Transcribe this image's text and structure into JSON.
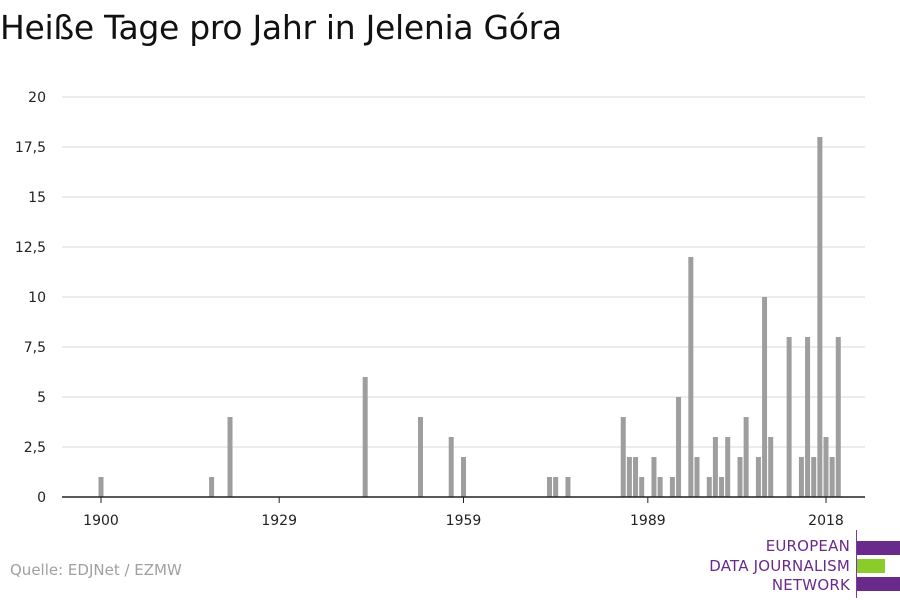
{
  "title": "Heiße Tage pro Jahr in Jelenia Góra",
  "source": "Quelle: EDJNet / EZMW",
  "logo": {
    "lines": [
      "EUROPEAN",
      "DATA JOURNALISM",
      "NETWORK"
    ],
    "colors": {
      "purple": "#6a2a8c",
      "green": "#8ccc2a"
    }
  },
  "chart_data": {
    "type": "bar",
    "title": "Heiße Tage pro Jahr in Jelenia Góra",
    "xlabel": "",
    "ylabel": "",
    "x_ticks": [
      1900,
      1929,
      1959,
      1989,
      2018
    ],
    "y_ticks": [
      "0",
      "2,5",
      "5",
      "7,5",
      "10",
      "12,5",
      "15",
      "17,5",
      "20"
    ],
    "ylim": [
      0,
      20
    ],
    "xlim": [
      1900,
      2018
    ],
    "grid": true,
    "bar_color": "#9e9e9e",
    "points": [
      {
        "x": 1900,
        "y": 1
      },
      {
        "x": 1918,
        "y": 1
      },
      {
        "x": 1921,
        "y": 4
      },
      {
        "x": 1943,
        "y": 6
      },
      {
        "x": 1952,
        "y": 4
      },
      {
        "x": 1957,
        "y": 3
      },
      {
        "x": 1959,
        "y": 2
      },
      {
        "x": 1973,
        "y": 1
      },
      {
        "x": 1974,
        "y": 1
      },
      {
        "x": 1976,
        "y": 1
      },
      {
        "x": 1985,
        "y": 4
      },
      {
        "x": 1986,
        "y": 2
      },
      {
        "x": 1987,
        "y": 2
      },
      {
        "x": 1988,
        "y": 1
      },
      {
        "x": 1990,
        "y": 2
      },
      {
        "x": 1991,
        "y": 1
      },
      {
        "x": 1993,
        "y": 1
      },
      {
        "x": 1994,
        "y": 5
      },
      {
        "x": 1996,
        "y": 12
      },
      {
        "x": 1997,
        "y": 2
      },
      {
        "x": 1999,
        "y": 1
      },
      {
        "x": 2000,
        "y": 3
      },
      {
        "x": 2001,
        "y": 1
      },
      {
        "x": 2002,
        "y": 3
      },
      {
        "x": 2004,
        "y": 2
      },
      {
        "x": 2005,
        "y": 4
      },
      {
        "x": 2007,
        "y": 2
      },
      {
        "x": 2008,
        "y": 10
      },
      {
        "x": 2009,
        "y": 3
      },
      {
        "x": 2012,
        "y": 8
      },
      {
        "x": 2014,
        "y": 2
      },
      {
        "x": 2015,
        "y": 8
      },
      {
        "x": 2016,
        "y": 2
      },
      {
        "x": 2017,
        "y": 18
      },
      {
        "x": 2018,
        "y": 3
      },
      {
        "x": 2019,
        "y": 2
      },
      {
        "x": 2020,
        "y": 8
      }
    ]
  }
}
